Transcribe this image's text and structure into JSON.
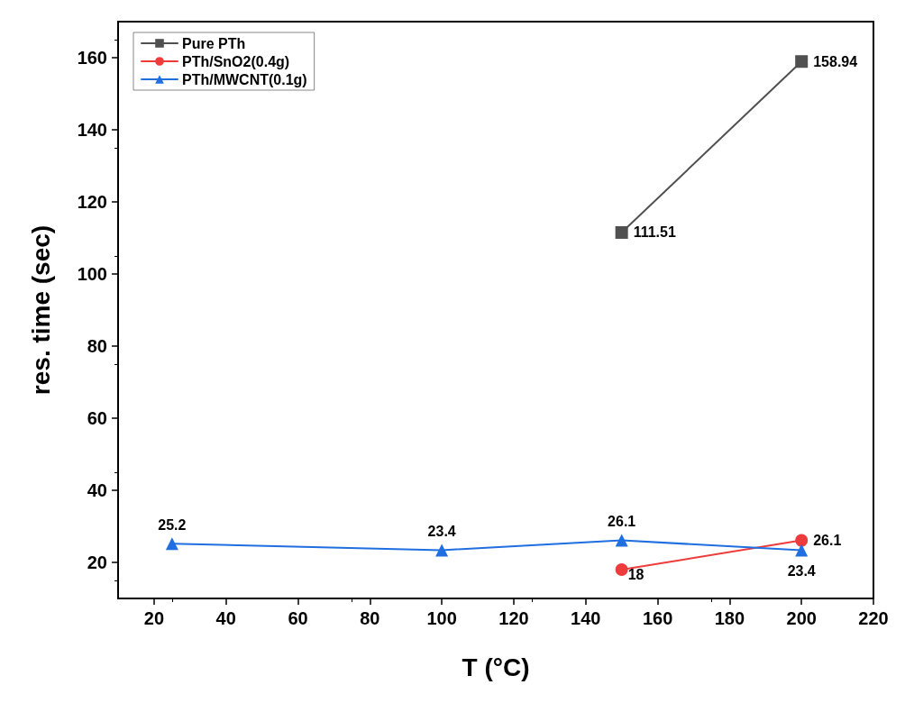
{
  "chart_data": {
    "type": "line",
    "xlabel": "T (°C)",
    "ylabel": "res. time (sec)",
    "xlim": [
      10,
      220
    ],
    "ylim": [
      10,
      170
    ],
    "xticks": [
      20,
      40,
      60,
      80,
      100,
      120,
      140,
      160,
      180,
      200,
      220
    ],
    "yticks": [
      20,
      40,
      60,
      80,
      100,
      120,
      140,
      160
    ],
    "grid": false,
    "legend": "top left",
    "data_labels": true,
    "series": [
      {
        "name": "Pure PTh",
        "color": "#505050",
        "marker": "square",
        "x": [
          150,
          200
        ],
        "values": [
          111.51,
          158.94
        ]
      },
      {
        "name": "PTh/SnO2(0.4g)",
        "color": "#ee3b3b",
        "marker": "circle",
        "x": [
          150,
          200
        ],
        "values": [
          18,
          26.1
        ]
      },
      {
        "name": "PTh/MWCNT(0.1g)",
        "color": "#1f6fe0",
        "marker": "triangle",
        "x": [
          25,
          100,
          150,
          200
        ],
        "values": [
          25.2,
          23.4,
          26.1,
          23.4
        ]
      }
    ]
  }
}
